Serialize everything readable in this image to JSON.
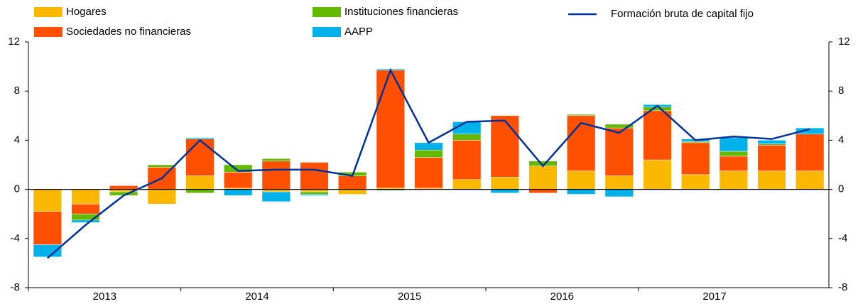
{
  "chart_data": {
    "type": "stacked_bar_line",
    "categories": [
      "2013",
      null,
      null,
      null,
      "2014",
      null,
      null,
      null,
      "2015",
      null,
      null,
      null,
      "2016",
      null,
      null,
      null,
      "2017",
      null,
      null,
      null,
      null
    ],
    "series": [
      {
        "name": "Hogares",
        "color": "#fbb800",
        "values": [
          -1.8,
          -1.2,
          -0.2,
          -1.2,
          1.1,
          0.1,
          -0.2,
          -0.2,
          -0.4,
          0.1,
          0.1,
          0.8,
          1.0,
          1.9,
          1.5,
          1.1,
          2.4,
          1.2,
          1.5,
          1.5,
          1.5
        ]
      },
      {
        "name": "Sociedades no financieras",
        "color": "#ff4f00",
        "values": [
          -2.7,
          -0.8,
          0.3,
          1.8,
          3.0,
          1.3,
          2.3,
          2.2,
          1.1,
          9.6,
          2.5,
          3.2,
          5.0,
          -0.3,
          4.5,
          3.9,
          4.0,
          2.6,
          1.2,
          2.1,
          3.0
        ]
      },
      {
        "name": "Instituciones financieras",
        "color": "#65b800",
        "values": [
          0,
          -0.5,
          -0.3,
          0.2,
          -0.3,
          0.6,
          0.2,
          -0.2,
          0.3,
          -0.1,
          0.6,
          0.5,
          0,
          0.4,
          0.1,
          0.3,
          0.3,
          0.1,
          0.4,
          0.1,
          0
        ]
      },
      {
        "name": "AAPP",
        "color": "#00b1ea",
        "values": [
          -1.0,
          -0.2,
          0,
          0,
          0.1,
          -0.5,
          -0.8,
          -0.1,
          0,
          0.1,
          0.6,
          1.0,
          -0.3,
          0,
          -0.4,
          -0.6,
          0.2,
          0.2,
          1.1,
          0.3,
          0.5
        ]
      },
      {
        "name": "Formación bruta de capital fijo",
        "color": "#003299",
        "kind": "line",
        "values": [
          -5.6,
          -2.9,
          -0.5,
          0.9,
          4.0,
          1.5,
          1.6,
          1.6,
          1.1,
          9.7,
          3.8,
          5.5,
          5.6,
          1.9,
          5.4,
          4.6,
          6.8,
          4.0,
          4.3,
          4.1,
          4.9
        ]
      }
    ],
    "ylim": [
      -8,
      12
    ],
    "yticks": [
      -8,
      -4,
      0,
      4,
      8,
      12
    ],
    "y2lim": [
      -8,
      12
    ],
    "y2ticks": [
      -8,
      -4,
      0,
      4,
      8,
      12
    ]
  }
}
